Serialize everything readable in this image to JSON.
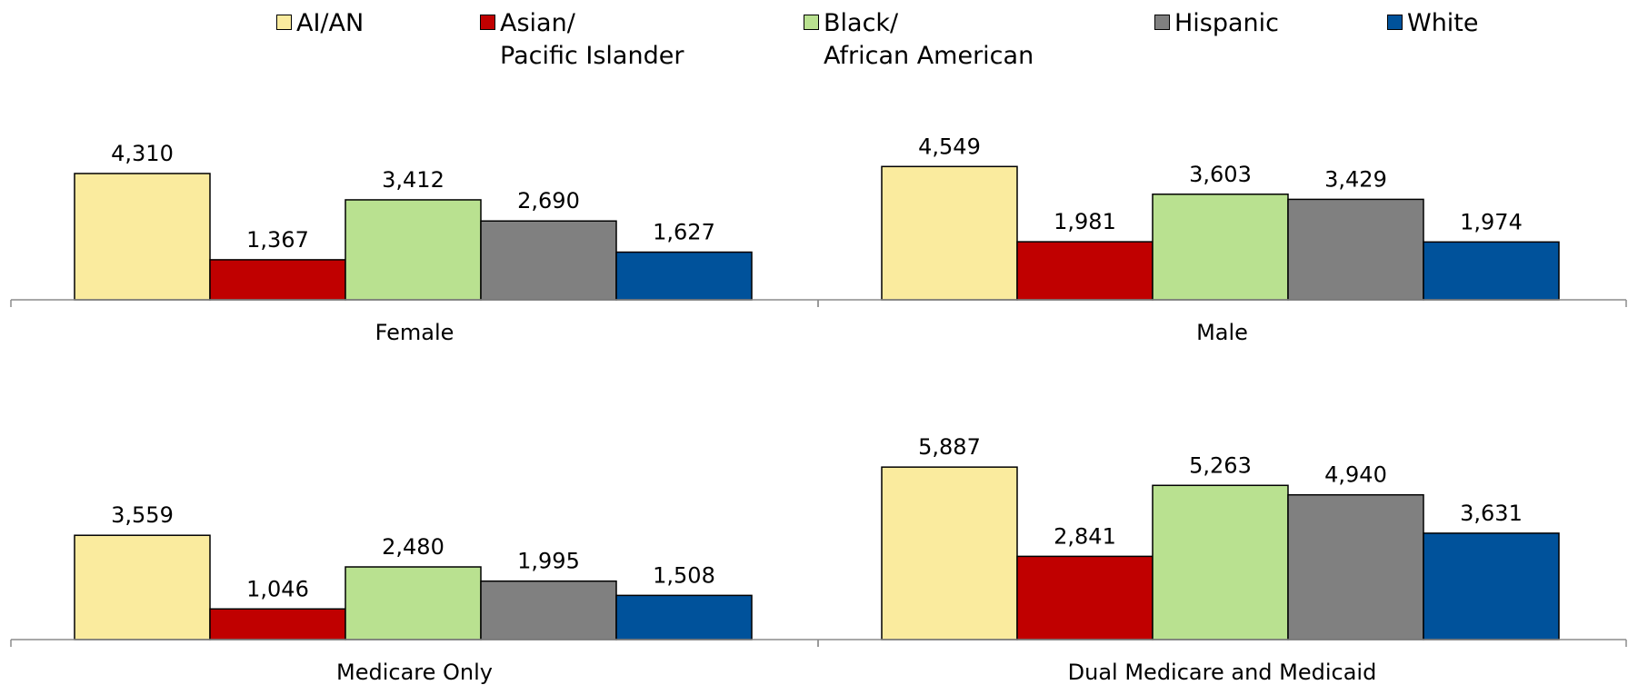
{
  "chart_data": [
    {
      "type": "bar",
      "panel": "Female",
      "categories": [
        "AI/AN",
        "Asian/\nPacific Islander",
        "Black/\nAfrican American",
        "Hispanic",
        "White"
      ],
      "values": [
        4310,
        1367,
        3412,
        2690,
        1627
      ],
      "value_labels": [
        "4,310",
        "1,367",
        "3,412",
        "2,690",
        "1,627"
      ],
      "xlabel": "Female"
    },
    {
      "type": "bar",
      "panel": "Male",
      "categories": [
        "AI/AN",
        "Asian/\nPacific Islander",
        "Black/\nAfrican American",
        "Hispanic",
        "White"
      ],
      "values": [
        4549,
        1981,
        3603,
        3429,
        1974
      ],
      "value_labels": [
        "4,549",
        "1,981",
        "3,603",
        "3,429",
        "1,974"
      ],
      "xlabel": "Male"
    },
    {
      "type": "bar",
      "panel": "Medicare Only",
      "categories": [
        "AI/AN",
        "Asian/\nPacific Islander",
        "Black/\nAfrican American",
        "Hispanic",
        "White"
      ],
      "values": [
        3559,
        1046,
        2480,
        1995,
        1508
      ],
      "value_labels": [
        "3,559",
        "1,046",
        "2,480",
        "1,995",
        "1,508"
      ],
      "xlabel": "Medicare Only"
    },
    {
      "type": "bar",
      "panel": "Dual Medicare and Medicaid",
      "categories": [
        "AI/AN",
        "Asian/\nPacific Islander",
        "Black/\nAfrican American",
        "Hispanic",
        "White"
      ],
      "values": [
        5887,
        2841,
        5263,
        4940,
        3631
      ],
      "value_labels": [
        "5,887",
        "2,841",
        "5,263",
        "4,940",
        "3,631"
      ],
      "xlabel": "Dual Medicare and Medicaid"
    }
  ],
  "legend": {
    "placement": "top",
    "items": [
      {
        "label": "AI/AN",
        "color": "#FAEB9E"
      },
      {
        "label": "Asian/\nPacific Islander",
        "color": "#C00000"
      },
      {
        "label": "Black/\nAfrican American",
        "color": "#B9E190"
      },
      {
        "label": "Hispanic",
        "color": "#808080"
      },
      {
        "label": "White",
        "color": "#00529B"
      }
    ]
  },
  "colors": {
    "bar_stroke": "#000000",
    "axis": "#8C8C8C"
  }
}
